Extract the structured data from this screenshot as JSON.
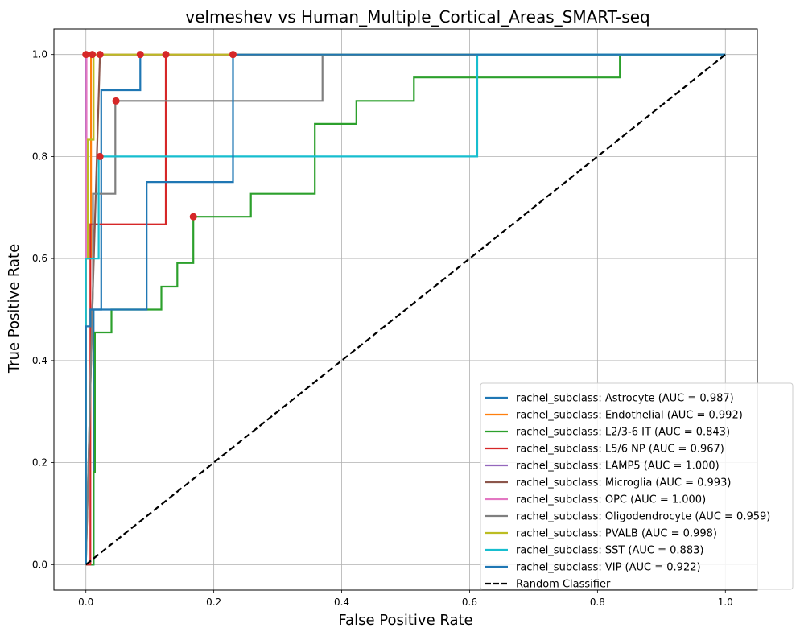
{
  "chart_data": {
    "type": "line",
    "title": "velmeshev vs Human_Multiple_Cortical_Areas_SMART-seq",
    "xlabel": "False Positive Rate",
    "ylabel": "True Positive Rate",
    "xlim": [
      -0.05,
      1.05
    ],
    "ylim": [
      -0.05,
      1.05
    ],
    "xticks": [
      0.0,
      0.2,
      0.4,
      0.6,
      0.8,
      1.0
    ],
    "xtick_labels": [
      "0.0",
      "0.2",
      "0.4",
      "0.6",
      "0.8",
      "1.0"
    ],
    "yticks": [
      0.0,
      0.2,
      0.4,
      0.6,
      0.8,
      1.0
    ],
    "ytick_labels": [
      "0.0",
      "0.2",
      "0.4",
      "0.6",
      "0.8",
      "1.0"
    ],
    "grid": true,
    "legend_position": "lower-right",
    "series": [
      {
        "name": "rachel_subclass: Astrocyte (AUC = 0.987)",
        "color": "#1f77b4",
        "x": [
          0,
          0.012,
          0.012,
          0.024,
          0.024,
          0.085,
          0.085,
          0.23,
          0.23,
          1.0
        ],
        "y": [
          0,
          0,
          0.5,
          0.5,
          0.93,
          0.93,
          1.0,
          1.0,
          1.0,
          1.0
        ]
      },
      {
        "name": "rachel_subclass: Endothelial (AUC = 0.992)",
        "color": "#ff7f0e",
        "x": [
          0,
          0,
          0.008,
          0.008,
          1.0
        ],
        "y": [
          0,
          0.6,
          0.6,
          1.0,
          1.0
        ]
      },
      {
        "name": "rachel_subclass: L2/3-6 IT (AUC = 0.843)",
        "color": "#2ca02c",
        "x": [
          0,
          0.012,
          0.012,
          0.014,
          0.014,
          0.04,
          0.04,
          0.118,
          0.118,
          0.143,
          0.143,
          0.168,
          0.168,
          0.258,
          0.258,
          0.358,
          0.358,
          0.423,
          0.423,
          0.513,
          0.513,
          0.835,
          0.835,
          1.0
        ],
        "y": [
          0,
          0,
          0.182,
          0.182,
          0.455,
          0.455,
          0.5,
          0.5,
          0.545,
          0.545,
          0.591,
          0.591,
          0.682,
          0.682,
          0.727,
          0.727,
          0.864,
          0.864,
          0.909,
          0.909,
          0.955,
          0.955,
          1.0,
          1.0
        ]
      },
      {
        "name": "rachel_subclass: L5/6 NP (AUC = 0.967)",
        "color": "#d62728",
        "x": [
          0,
          0.007,
          0.007,
          0.125,
          0.125,
          1.0
        ],
        "y": [
          0,
          0,
          0.667,
          0.667,
          1.0,
          1.0
        ]
      },
      {
        "name": "rachel_subclass: LAMP5 (AUC = 1.000)",
        "color": "#9467bd",
        "x": [
          0,
          0,
          1.0
        ],
        "y": [
          0,
          1.0,
          1.0
        ]
      },
      {
        "name": "rachel_subclass: Microglia (AUC = 0.993)",
        "color": "#8c564b",
        "x": [
          0,
          0.011,
          0.011,
          0.022,
          0.022,
          1.0
        ],
        "y": [
          0,
          0.545,
          0.545,
          1.0,
          1.0,
          1.0
        ]
      },
      {
        "name": "rachel_subclass: OPC (AUC = 1.000)",
        "color": "#e377c2",
        "x": [
          0,
          0,
          0.001,
          0.001,
          1.0
        ],
        "y": [
          0,
          0.833,
          0.833,
          1.0,
          1.0
        ]
      },
      {
        "name": "rachel_subclass: Oligodendrocyte (AUC = 0.959)",
        "color": "#7f7f7f",
        "x": [
          0,
          0.011,
          0.011,
          0.046,
          0.046,
          0.37,
          0.37,
          1.0
        ],
        "y": [
          0,
          0.545,
          0.727,
          0.727,
          0.909,
          0.909,
          1.0,
          1.0
        ]
      },
      {
        "name": "rachel_subclass: PVALB (AUC = 0.998)",
        "color": "#bcbd22",
        "x": [
          0,
          0,
          0.003,
          0.003,
          0.012,
          0.012,
          1.0
        ],
        "y": [
          0,
          0.6,
          0.6,
          0.833,
          0.833,
          1.0,
          1.0
        ]
      },
      {
        "name": "rachel_subclass: SST (AUC = 0.883)",
        "color": "#17becf",
        "x": [
          0,
          0,
          0.02,
          0.02,
          0.612,
          0.612,
          1.0
        ],
        "y": [
          0,
          0.6,
          0.6,
          0.8,
          0.8,
          1.0,
          1.0
        ]
      },
      {
        "name": "rachel_subclass: VIP (AUC = 0.922)",
        "color": "#1f77b4",
        "x": [
          0,
          0,
          0.007,
          0.007,
          0.023,
          0.023,
          0.095,
          0.095,
          0.23,
          0.23,
          1.0
        ],
        "y": [
          0,
          0.467,
          0.467,
          0.5,
          0.5,
          0.5,
          0.5,
          0.75,
          0.75,
          1.0,
          1.0
        ]
      }
    ],
    "reference_line": {
      "name": "Random Classifier",
      "color": "#000000",
      "x": [
        0,
        1
      ],
      "y": [
        0,
        1
      ]
    },
    "markers": {
      "color": "#d62728",
      "points": [
        {
          "x": 0.0,
          "y": 1.0
        },
        {
          "x": 0.01,
          "y": 1.0
        },
        {
          "x": 0.022,
          "y": 1.0
        },
        {
          "x": 0.085,
          "y": 1.0
        },
        {
          "x": 0.125,
          "y": 1.0
        },
        {
          "x": 0.23,
          "y": 1.0
        },
        {
          "x": 0.047,
          "y": 0.909
        },
        {
          "x": 0.022,
          "y": 0.8
        },
        {
          "x": 0.168,
          "y": 0.682
        }
      ]
    }
  }
}
